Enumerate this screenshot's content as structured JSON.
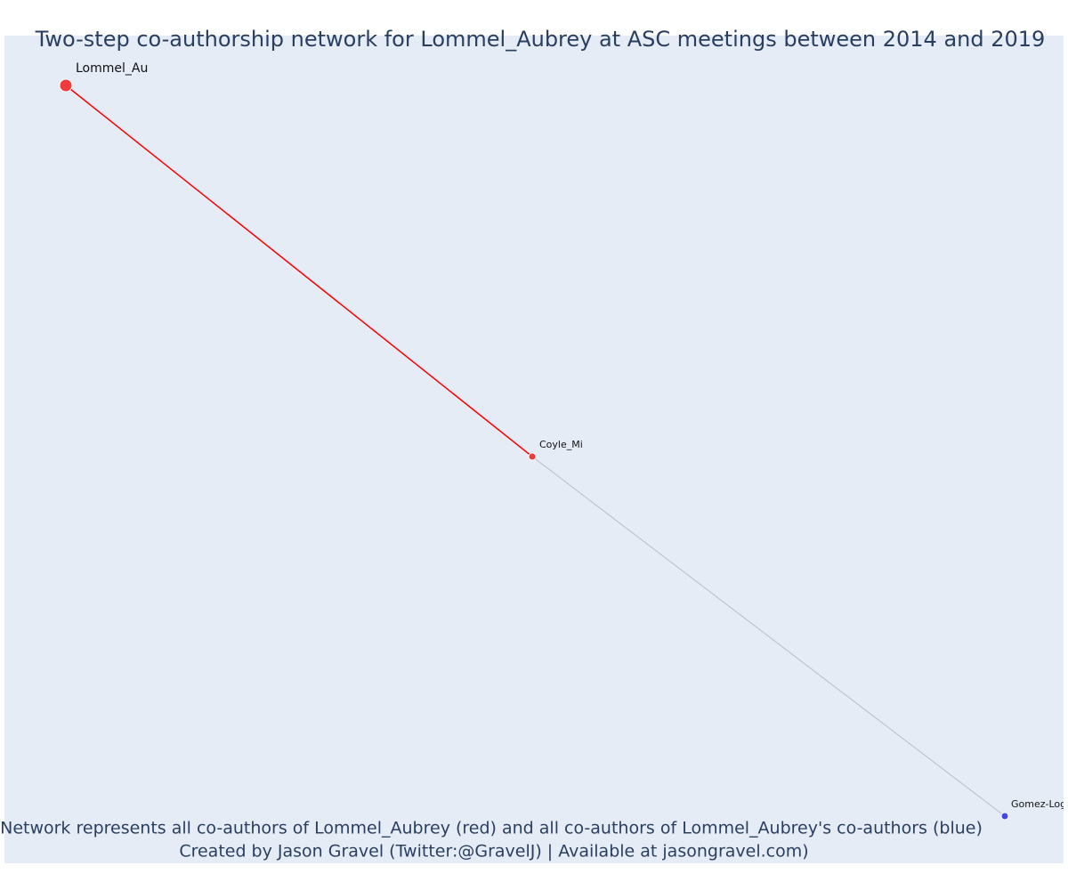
{
  "title": "Two-step co-authorship network for Lommel_Aubrey at ASC meetings between 2014 and 2019",
  "nodes": [
    {
      "label": "Lommel_Au",
      "color": "#ef3b3b"
    },
    {
      "label": "Coyle_Mi",
      "color": "#ef3b3b"
    },
    {
      "label": "Gomez-Loga",
      "color": "#4646e6"
    }
  ],
  "edges": [
    {
      "source": 0,
      "target": 1,
      "color": "#ff0000"
    },
    {
      "source": 1,
      "target": 2,
      "color": "#b8bccb"
    }
  ],
  "footer": [
    "Network represents all co-authors of Lommel_Aubrey (red) and all co-authors of Lommel_Aubrey's co-authors (blue)",
    "Created by Jason Gravel (Twitter:@GravelJ) | Available at jasongravel.com)"
  ]
}
